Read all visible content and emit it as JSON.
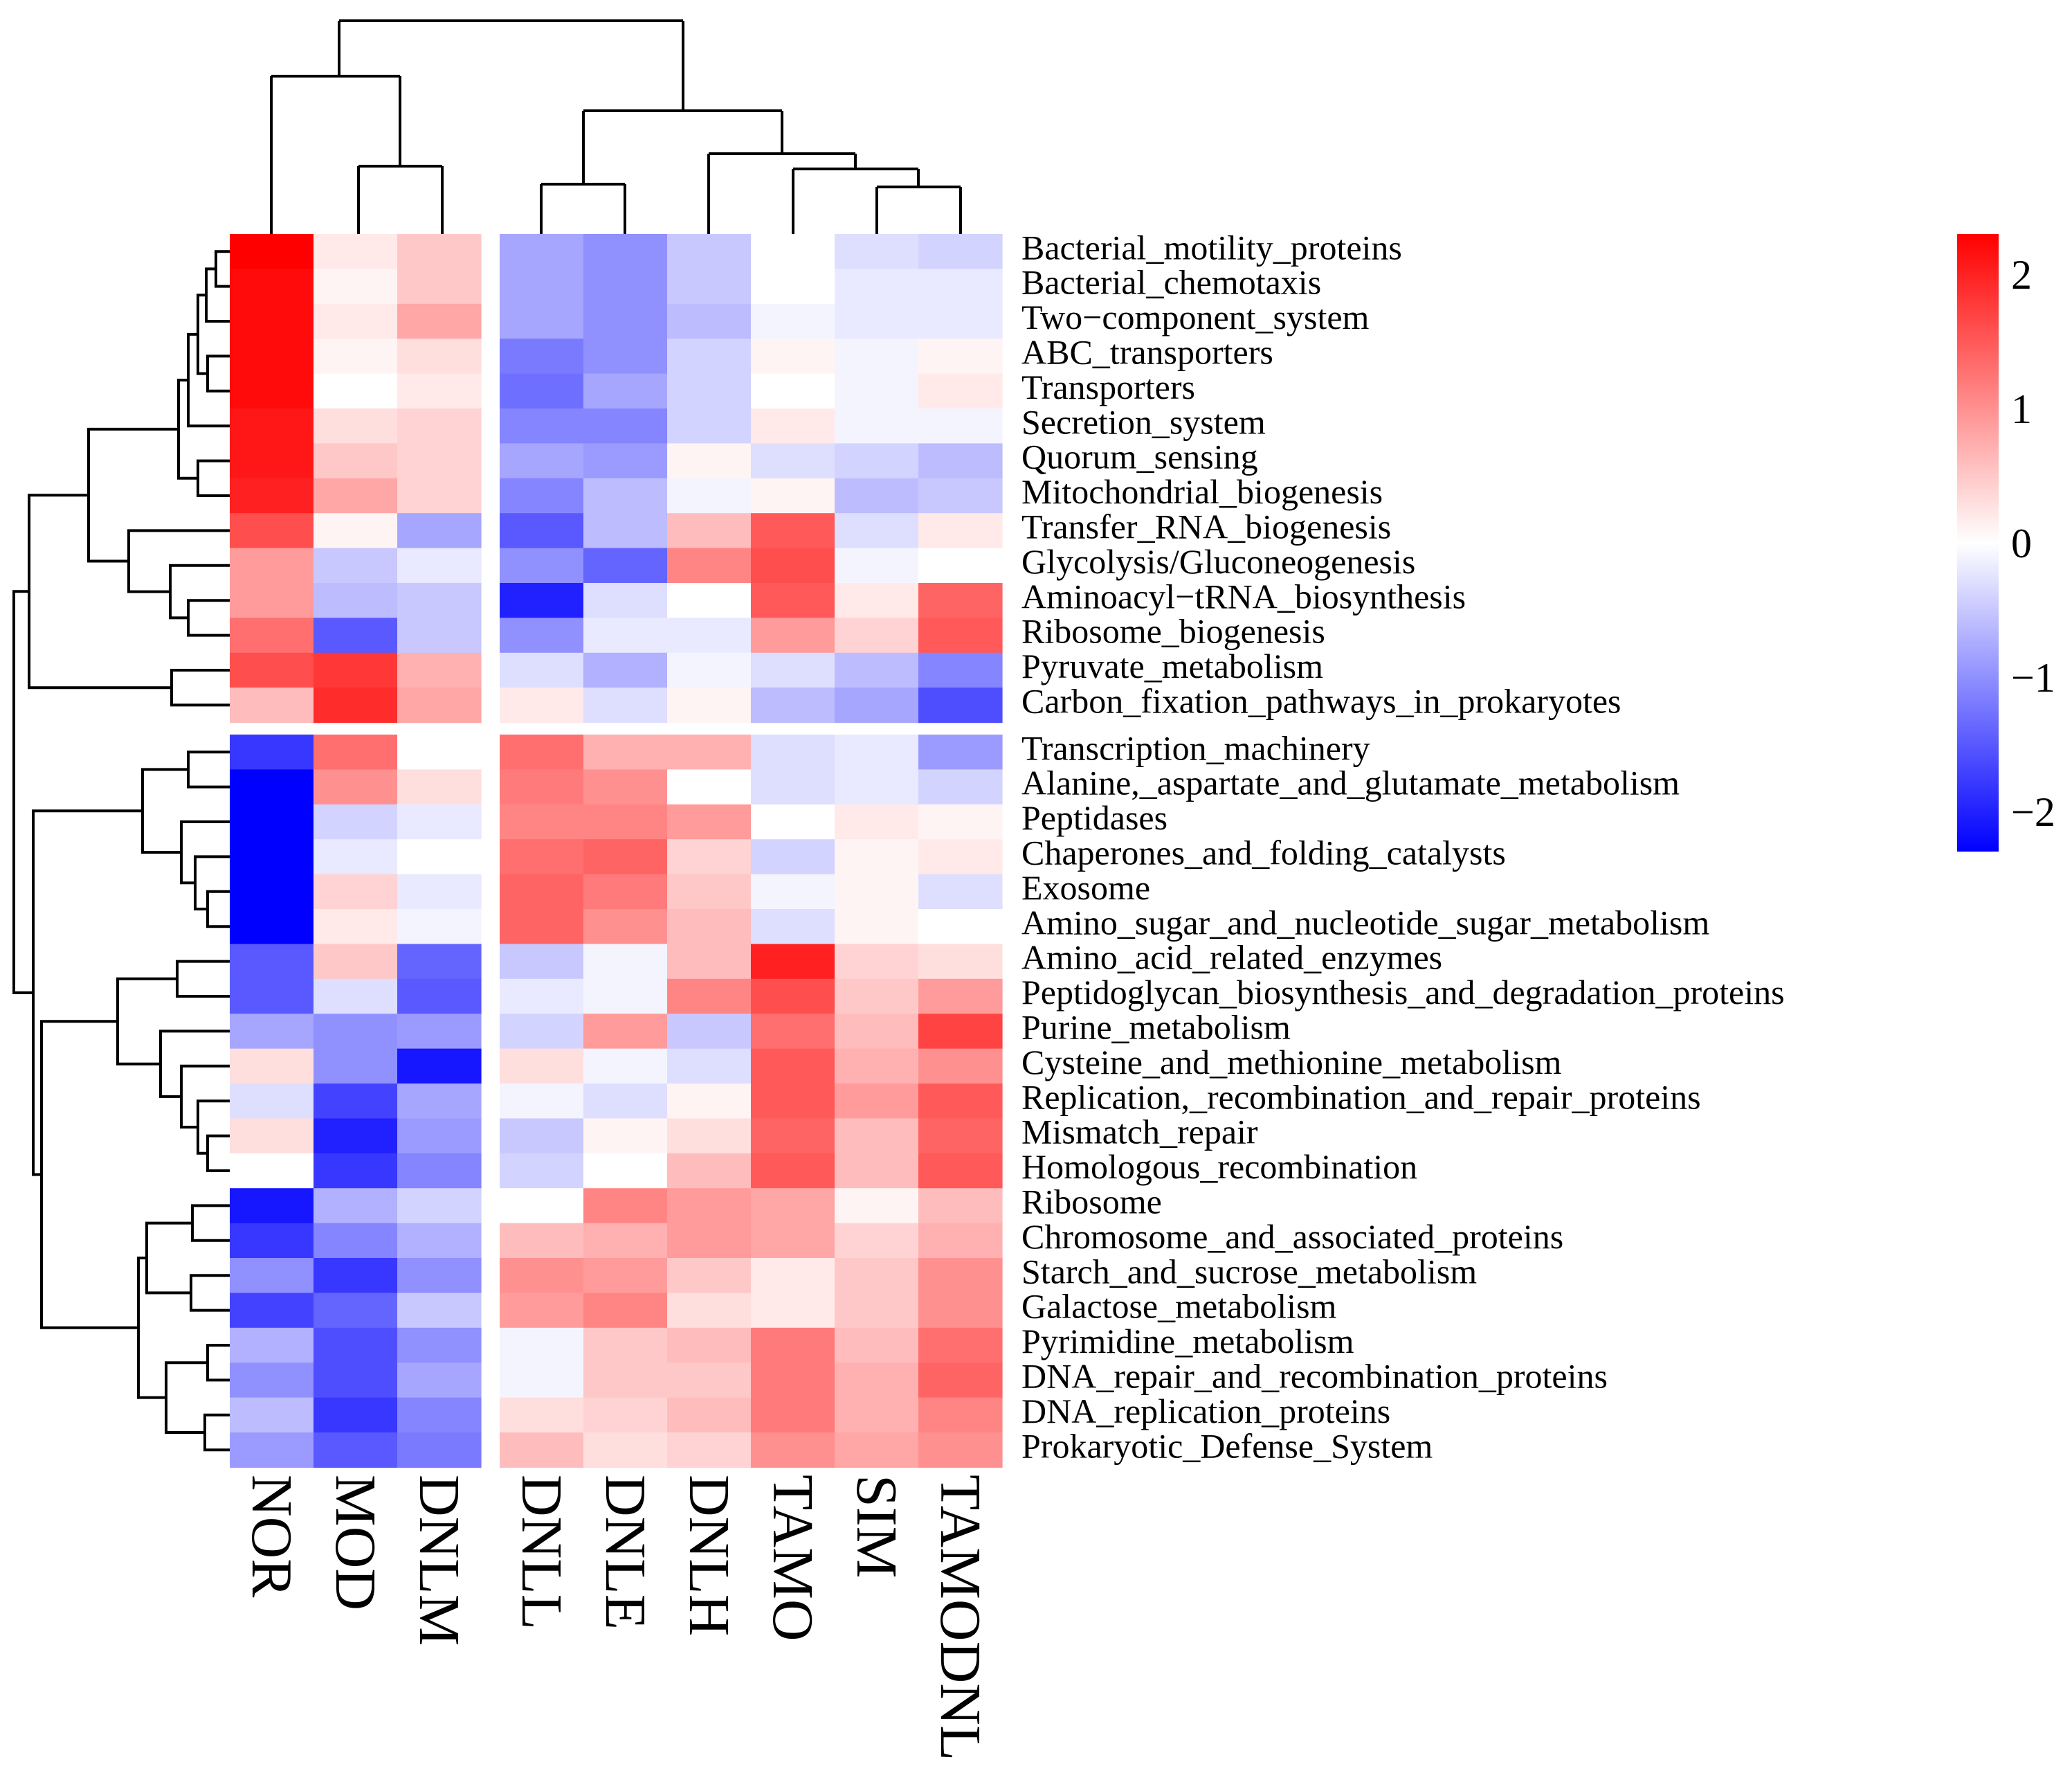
{
  "chart_data": {
    "type": "heatmap",
    "title": "",
    "columns": [
      "NOR",
      "MOD",
      "DNLM",
      "DNLL",
      "DNLE",
      "DNLH",
      "TAMO",
      "SIM",
      "TAMODNL"
    ],
    "column_groups": [
      [
        "NOR",
        "MOD",
        "DNLM"
      ],
      [
        "DNLL",
        "DNLE",
        "DNLH",
        "TAMO",
        "SIM",
        "TAMODNL"
      ]
    ],
    "row_groups": [
      [
        "Bacterial_motility_proteins",
        "Bacterial_chemotaxis",
        "Two−component_system",
        "ABC_transporters",
        "Transporters",
        "Secretion_system",
        "Quorum_sensing",
        "Mitochondrial_biogenesis",
        "Transfer_RNA_biogenesis",
        "Glycolysis/Gluconeogenesis",
        "Aminoacyl−tRNA_biosynthesis",
        "Ribosome_biogenesis",
        "Pyruvate_metabolism",
        "Carbon_fixation_pathways_in_prokaryotes"
      ],
      [
        "Transcription_machinery",
        "Alanine,_aspartate_and_glutamate_metabolism",
        "Peptidases",
        "Chaperones_and_folding_catalysts",
        "Exosome",
        "Amino_sugar_and_nucleotide_sugar_metabolism",
        "Amino_acid_related_enzymes",
        "Peptidoglycan_biosynthesis_and_degradation_proteins",
        "Purine_metabolism",
        "Cysteine_and_methionine_metabolism",
        "Replication,_recombination_and_repair_proteins",
        "Mismatch_repair",
        "Homologous_recombination",
        "Ribosome",
        "Chromosome_and_associated_proteins",
        "Starch_and_sucrose_metabolism",
        "Galactose_metabolism",
        "Pyrimidine_metabolism",
        "DNA_repair_and_recombination_proteins",
        "DNA_replication_proteins",
        "Prokaryotic_Defense_System"
      ]
    ],
    "rows": [
      "Bacterial_motility_proteins",
      "Bacterial_chemotaxis",
      "Two−component_system",
      "ABC_transporters",
      "Transporters",
      "Secretion_system",
      "Quorum_sensing",
      "Mitochondrial_biogenesis",
      "Transfer_RNA_biogenesis",
      "Glycolysis/Gluconeogenesis",
      "Aminoacyl−tRNA_biosynthesis",
      "Ribosome_biogenesis",
      "Pyruvate_metabolism",
      "Carbon_fixation_pathways_in_prokaryotes",
      "Transcription_machinery",
      "Alanine,_aspartate_and_glutamate_metabolism",
      "Peptidases",
      "Chaperones_and_folding_catalysts",
      "Exosome",
      "Amino_sugar_and_nucleotide_sugar_metabolism",
      "Amino_acid_related_enzymes",
      "Peptidoglycan_biosynthesis_and_degradation_proteins",
      "Purine_metabolism",
      "Cysteine_and_methionine_metabolism",
      "Replication,_recombination_and_repair_proteins",
      "Mismatch_repair",
      "Homologous_recombination",
      "Ribosome",
      "Chromosome_and_associated_proteins",
      "Starch_and_sucrose_metabolism",
      "Galactose_metabolism",
      "Pyrimidine_metabolism",
      "DNA_repair_and_recombination_proteins",
      "DNA_replication_proteins",
      "Prokaryotic_Defense_System"
    ],
    "values": [
      [
        2.3,
        0.2,
        0.5,
        -0.8,
        -1.0,
        -0.5,
        0.0,
        -0.3,
        -0.4
      ],
      [
        2.2,
        0.1,
        0.5,
        -0.8,
        -1.0,
        -0.5,
        0.0,
        -0.2,
        -0.2
      ],
      [
        2.2,
        0.2,
        0.8,
        -0.8,
        -1.0,
        -0.6,
        -0.1,
        -0.2,
        -0.2
      ],
      [
        2.2,
        0.1,
        0.3,
        -1.2,
        -1.0,
        -0.4,
        0.1,
        -0.1,
        0.1
      ],
      [
        2.2,
        0.0,
        0.2,
        -1.3,
        -0.8,
        -0.4,
        0.0,
        -0.1,
        0.2
      ],
      [
        2.1,
        0.3,
        0.4,
        -1.1,
        -1.1,
        -0.4,
        0.2,
        -0.1,
        -0.1
      ],
      [
        2.1,
        0.5,
        0.4,
        -0.8,
        -0.9,
        0.1,
        -0.3,
        -0.4,
        -0.6
      ],
      [
        2.0,
        0.8,
        0.4,
        -1.1,
        -0.6,
        -0.1,
        0.1,
        -0.6,
        -0.5
      ],
      [
        1.6,
        0.1,
        -0.8,
        -1.5,
        -0.6,
        0.6,
        1.5,
        -0.3,
        0.2
      ],
      [
        0.9,
        -0.5,
        -0.2,
        -1.0,
        -1.4,
        1.1,
        1.6,
        -0.1,
        0.0
      ],
      [
        0.9,
        -0.6,
        -0.5,
        -2.0,
        -0.3,
        0.0,
        1.5,
        0.2,
        1.4
      ],
      [
        1.3,
        -1.5,
        -0.5,
        -1.0,
        -0.2,
        -0.2,
        0.9,
        0.4,
        1.5
      ],
      [
        1.6,
        1.8,
        0.7,
        -0.3,
        -0.7,
        -0.1,
        -0.3,
        -0.6,
        -1.1
      ],
      [
        0.6,
        1.9,
        0.8,
        0.2,
        -0.3,
        0.1,
        -0.6,
        -0.8,
        -1.6
      ],
      [
        -1.8,
        1.3,
        0.0,
        1.3,
        0.7,
        0.7,
        -0.3,
        -0.2,
        -0.9
      ],
      [
        -2.3,
        1.0,
        0.3,
        1.2,
        1.0,
        0.0,
        -0.3,
        -0.2,
        -0.4
      ],
      [
        -2.3,
        -0.4,
        -0.2,
        1.1,
        1.1,
        0.9,
        0.0,
        0.2,
        0.1
      ],
      [
        -2.3,
        -0.2,
        0.0,
        1.3,
        1.4,
        0.4,
        -0.4,
        0.1,
        0.2
      ],
      [
        -2.3,
        0.4,
        -0.2,
        1.4,
        1.2,
        0.5,
        -0.1,
        0.1,
        -0.3
      ],
      [
        -2.3,
        0.2,
        -0.1,
        1.4,
        1.0,
        0.6,
        -0.3,
        0.1,
        0.0
      ],
      [
        -1.5,
        0.5,
        -1.4,
        -0.5,
        -0.1,
        0.6,
        2.0,
        0.4,
        0.3
      ],
      [
        -1.5,
        -0.3,
        -1.5,
        -0.2,
        -0.1,
        1.1,
        1.6,
        0.5,
        0.9
      ],
      [
        -0.8,
        -1.0,
        -0.9,
        -0.4,
        0.9,
        -0.5,
        1.3,
        0.6,
        1.7
      ],
      [
        0.3,
        -1.0,
        -2.1,
        0.3,
        -0.1,
        -0.3,
        1.5,
        0.7,
        1.0
      ],
      [
        -0.3,
        -1.7,
        -0.8,
        -0.1,
        -0.3,
        0.1,
        1.5,
        0.9,
        1.5
      ],
      [
        0.3,
        -2.0,
        -0.9,
        -0.5,
        0.1,
        0.3,
        1.4,
        0.6,
        1.4
      ],
      [
        0.0,
        -1.8,
        -1.1,
        -0.4,
        0.0,
        0.6,
        1.5,
        0.6,
        1.5
      ],
      [
        -2.1,
        -0.7,
        -0.4,
        0.0,
        1.1,
        0.9,
        0.8,
        0.1,
        0.6
      ],
      [
        -1.8,
        -1.1,
        -0.7,
        0.6,
        0.7,
        0.9,
        0.8,
        0.4,
        0.7
      ],
      [
        -1.0,
        -1.8,
        -1.0,
        1.0,
        0.9,
        0.5,
        0.2,
        0.5,
        1.0
      ],
      [
        -1.7,
        -1.4,
        -0.5,
        0.9,
        1.1,
        0.3,
        0.2,
        0.5,
        1.0
      ],
      [
        -0.7,
        -1.6,
        -1.0,
        -0.1,
        0.5,
        0.6,
        1.2,
        0.6,
        1.3
      ],
      [
        -1.0,
        -1.6,
        -0.8,
        -0.1,
        0.5,
        0.5,
        1.2,
        0.7,
        1.4
      ],
      [
        -0.6,
        -1.8,
        -1.1,
        0.3,
        0.4,
        0.6,
        1.2,
        0.7,
        1.1
      ],
      [
        -0.9,
        -1.5,
        -1.2,
        0.6,
        0.3,
        0.4,
        1.0,
        0.8,
        1.0
      ]
    ],
    "color_scale": {
      "min": -2.3,
      "max": 2.3,
      "low_color": "#0000ff",
      "mid_color": "#ffffff",
      "high_color": "#ff0000",
      "ticks": [
        2,
        1,
        0,
        -1,
        -2
      ],
      "tick_labels": [
        "2",
        "1",
        "0",
        "−1",
        "−2"
      ]
    },
    "legend_position": "right",
    "xlabel": "",
    "ylabel": ""
  }
}
